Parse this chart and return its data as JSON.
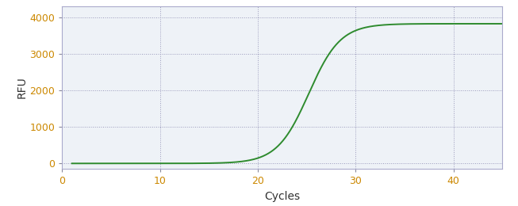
{
  "title": "",
  "xlabel": "Cycles",
  "ylabel": "RFU",
  "xlim": [
    0,
    45
  ],
  "ylim": [
    -150,
    4300
  ],
  "xticks": [
    0,
    10,
    20,
    30,
    40
  ],
  "yticks": [
    0,
    1000,
    2000,
    3000,
    4000
  ],
  "line_color": "#2e8b2e",
  "line_width": 1.4,
  "background_color": "#ffffff",
  "plot_bg_color": "#eef2f7",
  "grid_color": "#9999bb",
  "grid_linestyle": ":",
  "tick_label_color": "#cc8800",
  "axis_label_color": "#333333",
  "sigmoid_L": 3820,
  "sigmoid_k": 0.62,
  "sigmoid_x0": 25.2,
  "x_start": 1,
  "x_end": 45,
  "xlabel_fontsize": 10,
  "ylabel_fontsize": 10,
  "tick_fontsize": 9
}
